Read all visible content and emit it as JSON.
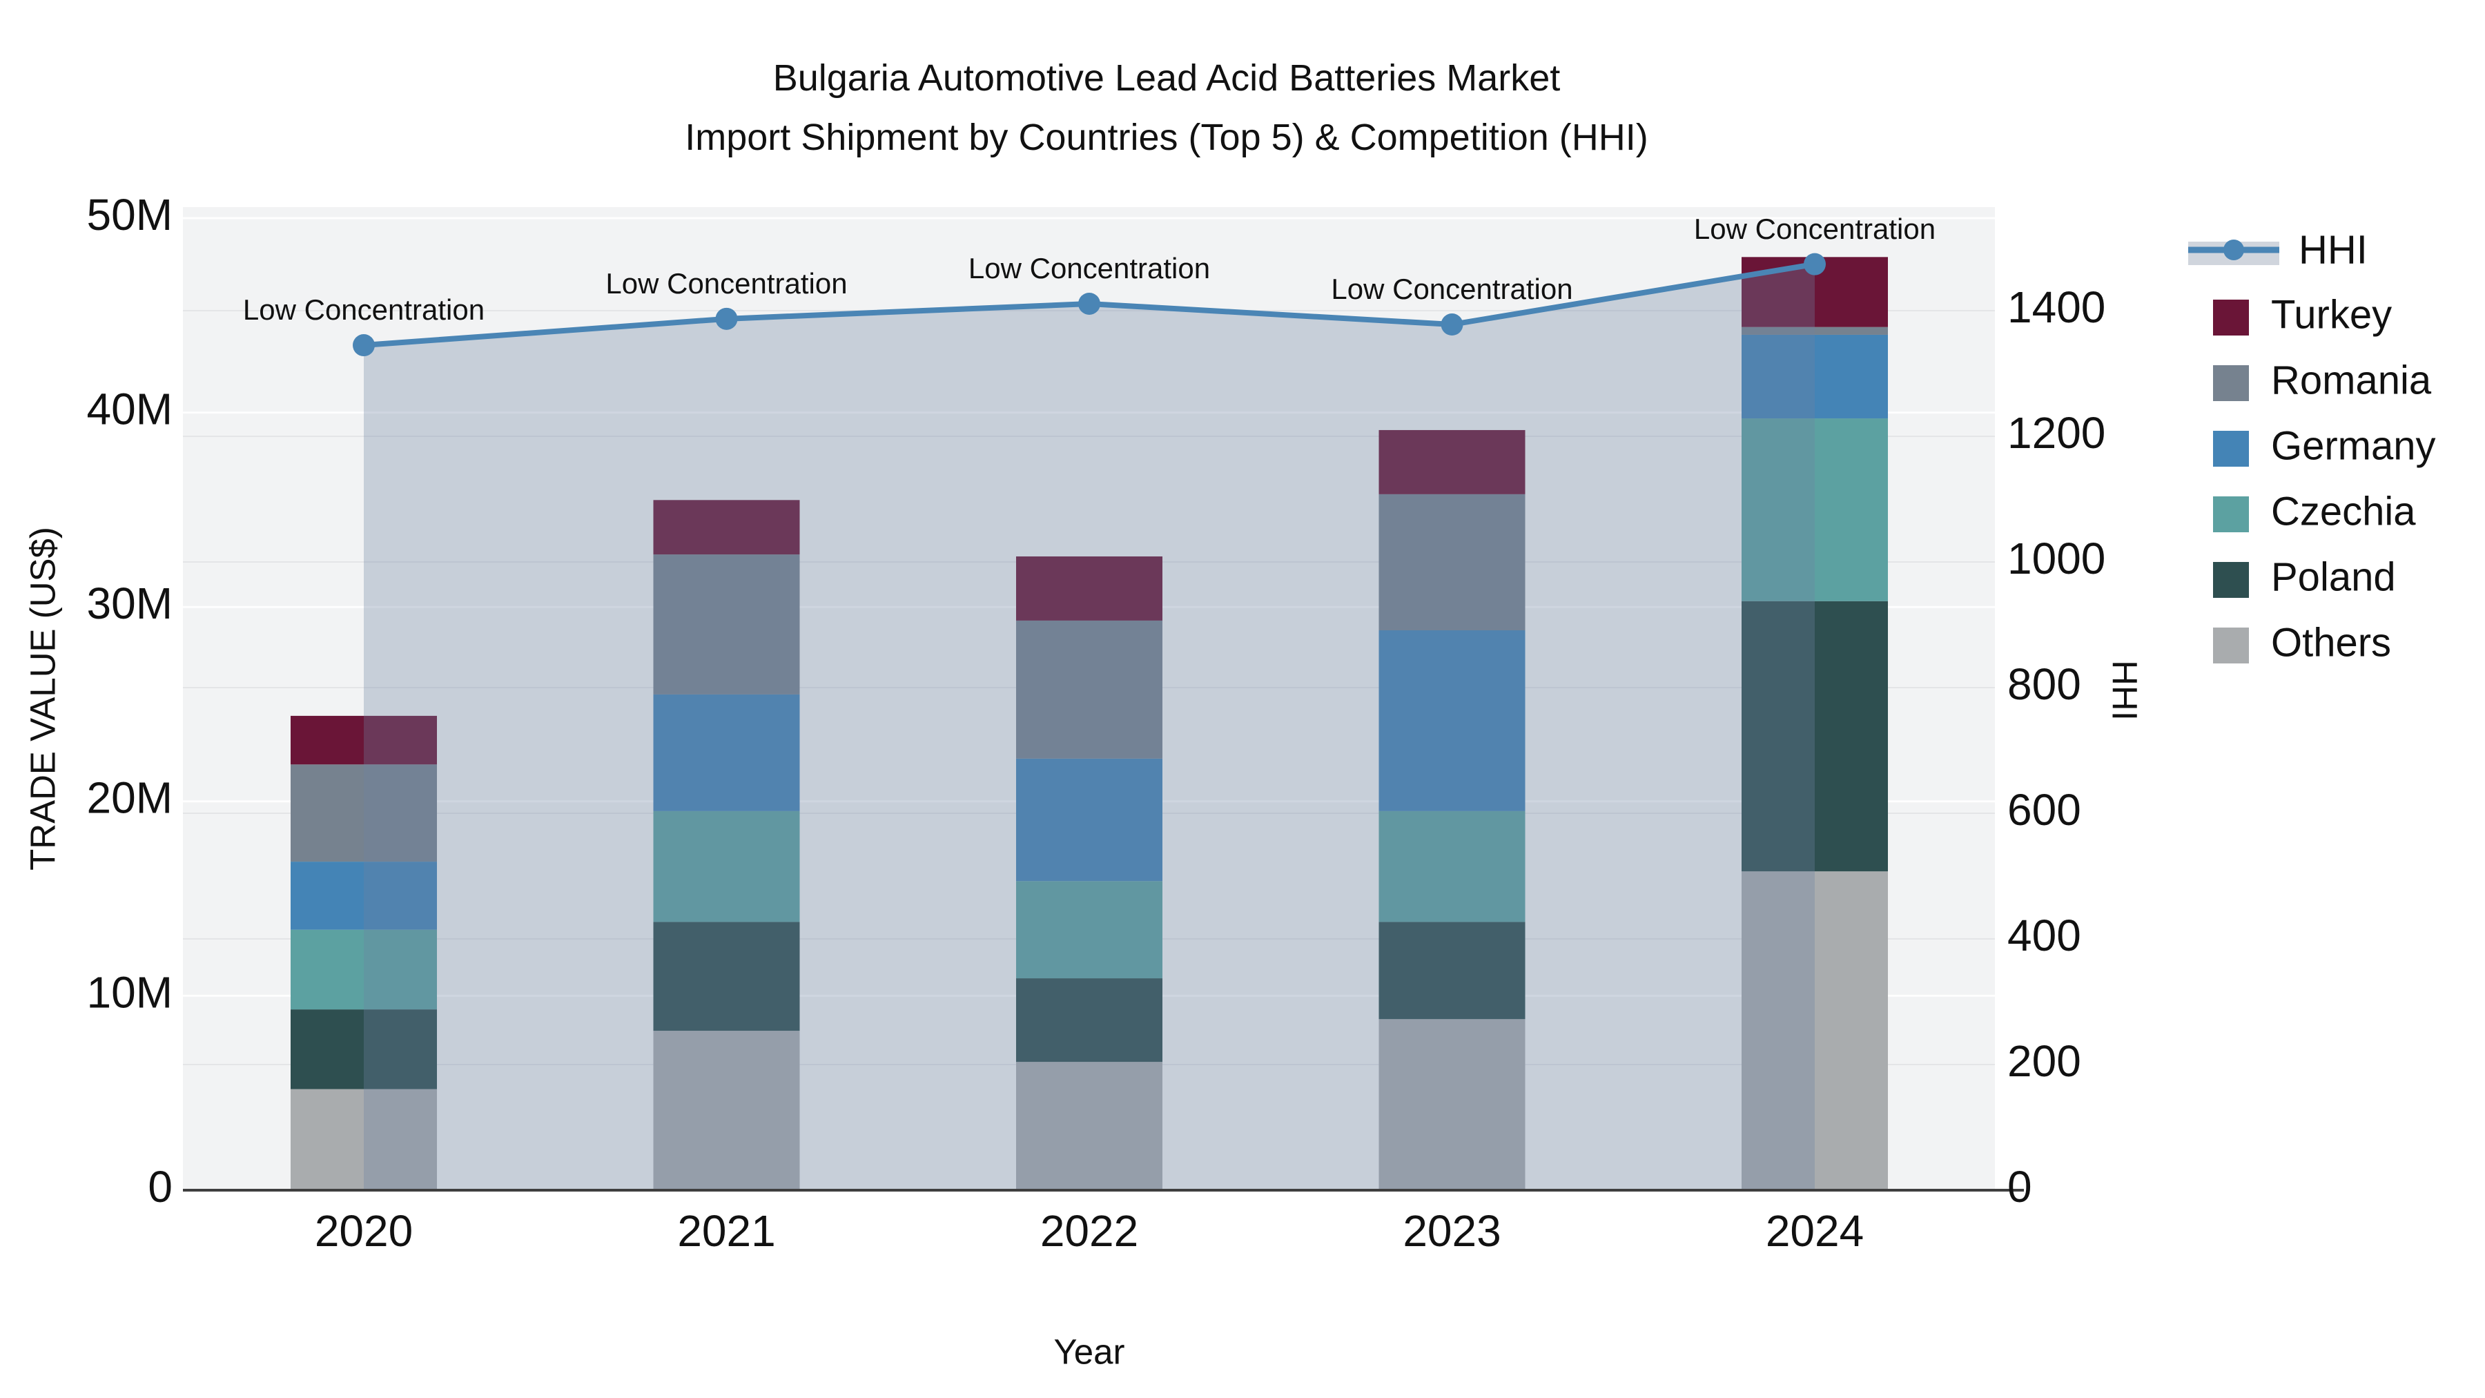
{
  "title": {
    "line1": "Bulgaria Automotive Lead Acid Batteries Market",
    "line2": "Import Shipment by Countries (Top 5) & Competition (HHI)"
  },
  "chart_data": {
    "type": "bar",
    "subtype": "stacked-bar-with-line",
    "categories": [
      "2020",
      "2021",
      "2022",
      "2023",
      "2024"
    ],
    "value_unit": "million US$",
    "series": [
      {
        "name": "Others",
        "color": "#a9acae",
        "values": [
          5.2,
          8.2,
          6.6,
          8.8,
          16.4
        ]
      },
      {
        "name": "Poland",
        "color": "#2e4f50",
        "values": [
          4.1,
          5.6,
          4.3,
          5.0,
          13.9
        ]
      },
      {
        "name": "Czechia",
        "color": "#5ca1a1",
        "values": [
          4.1,
          5.7,
          5.0,
          5.7,
          9.4
        ]
      },
      {
        "name": "Germany",
        "color": "#4484b6",
        "values": [
          3.5,
          6.0,
          6.3,
          9.3,
          4.3
        ]
      },
      {
        "name": "Romania",
        "color": "#76828f",
        "values": [
          5.0,
          7.2,
          7.1,
          7.0,
          0.4
        ]
      },
      {
        "name": "Turkey",
        "color": "#6a1537",
        "values": [
          2.5,
          2.8,
          3.3,
          3.3,
          3.6
        ]
      }
    ],
    "line_series": {
      "name": "HHI",
      "color": "#4a85b5",
      "area_fill": "rgba(108,130,162,0.32)",
      "axis": "right",
      "values": [
        1345,
        1387,
        1411,
        1378,
        1474
      ]
    },
    "annotations": [
      "Low Concentration",
      "Low Concentration",
      "Low Concentration",
      "Low Concentration",
      "Low Concentration"
    ],
    "y_left": {
      "label": "TRADE VALUE (US$)",
      "ticks": [
        "0",
        "10M",
        "20M",
        "30M",
        "40M",
        "50M"
      ],
      "tick_values": [
        0,
        10,
        20,
        30,
        40,
        50
      ],
      "max": 50
    },
    "y_right": {
      "label": "HHI",
      "ticks": [
        "0",
        "200",
        "400",
        "600",
        "800",
        "1000",
        "1200",
        "1400"
      ],
      "tick_values": [
        0,
        200,
        400,
        600,
        800,
        1000,
        1200,
        1400
      ]
    },
    "x_label": "Year",
    "legend": [
      "HHI",
      "Turkey",
      "Romania",
      "Germany",
      "Czechia",
      "Poland",
      "Others"
    ],
    "plot_background": "#f2f3f4",
    "grid_on": true,
    "legend_position": "right"
  }
}
